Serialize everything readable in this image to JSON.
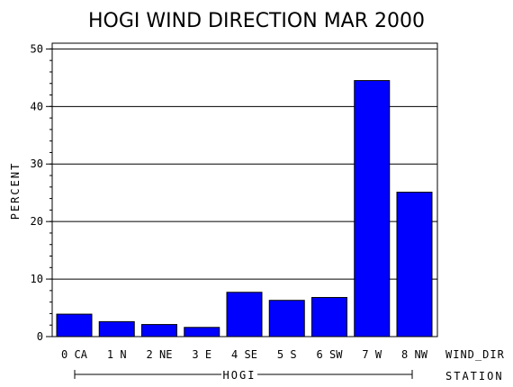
{
  "chart_data": {
    "type": "bar",
    "title": "HOGI WIND DIRECTION MAR 2000",
    "ylabel": "PERCENT",
    "x_axis_name": "WIND_DIR",
    "group_axis_name": "STATION",
    "group_label": "HOGI",
    "categories": [
      "0 CA",
      "1 N",
      "2 NE",
      "3 E",
      "4 SE",
      "5 S",
      "6 SW",
      "7 W",
      "8 NW"
    ],
    "values": [
      3.9,
      2.6,
      2.1,
      1.6,
      7.7,
      6.3,
      6.8,
      44.5,
      25.1
    ],
    "ylim": [
      0,
      51
    ],
    "yticks": [
      0,
      10,
      20,
      30,
      40,
      50
    ],
    "grid": true,
    "bar_color": "#0000ff"
  }
}
